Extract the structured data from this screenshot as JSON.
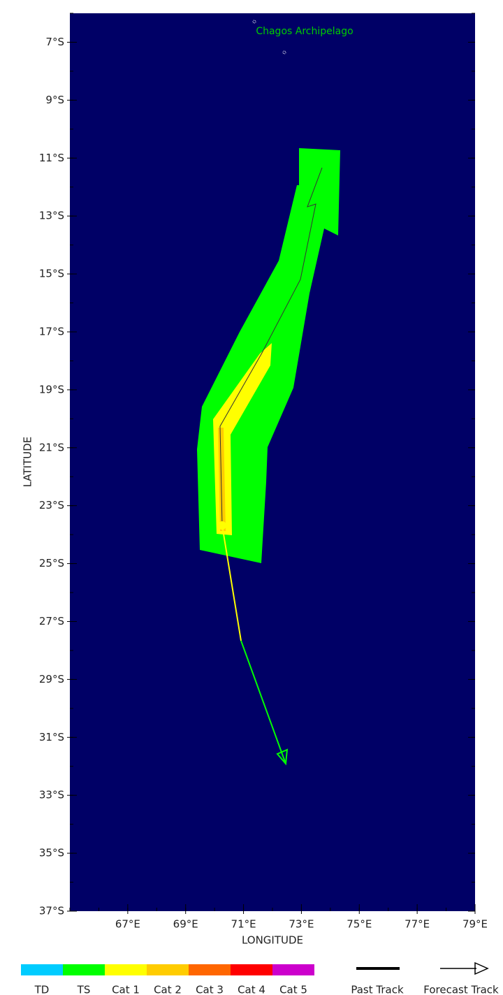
{
  "place_label": "Chagos Archipelago",
  "axes": {
    "xlabel": "LONGITUDE",
    "ylabel": "LATITUDE",
    "lon_range": [
      65,
      79
    ],
    "lat_range": [
      -6,
      -37
    ],
    "xticks": [
      {
        "value": 67,
        "label": "67°E"
      },
      {
        "value": 69,
        "label": "69°E"
      },
      {
        "value": 71,
        "label": "71°E"
      },
      {
        "value": 73,
        "label": "73°E"
      },
      {
        "value": 75,
        "label": "75°E"
      },
      {
        "value": 77,
        "label": "77°E"
      },
      {
        "value": 79,
        "label": "79°E"
      }
    ],
    "yticks": [
      {
        "value": -7,
        "label": "7°S"
      },
      {
        "value": -9,
        "label": "9°S"
      },
      {
        "value": -11,
        "label": "11°S"
      },
      {
        "value": -13,
        "label": "13°S"
      },
      {
        "value": -15,
        "label": "15°S"
      },
      {
        "value": -17,
        "label": "17°S"
      },
      {
        "value": -19,
        "label": "19°S"
      },
      {
        "value": -21,
        "label": "21°S"
      },
      {
        "value": -23,
        "label": "23°S"
      },
      {
        "value": -25,
        "label": "25°S"
      },
      {
        "value": -27,
        "label": "27°S"
      },
      {
        "value": -29,
        "label": "29°S"
      },
      {
        "value": -31,
        "label": "31°S"
      },
      {
        "value": -33,
        "label": "33°S"
      },
      {
        "value": -35,
        "label": "35°S"
      },
      {
        "value": -37,
        "label": "37°S"
      }
    ]
  },
  "legend": {
    "categories": [
      {
        "label": "TD",
        "color": "#00ccff"
      },
      {
        "label": "TS",
        "color": "#00ff00"
      },
      {
        "label": "Cat 1",
        "color": "#ffff00"
      },
      {
        "label": "Cat 2",
        "color": "#ffcc00"
      },
      {
        "label": "Cat 3",
        "color": "#ff6600"
      },
      {
        "label": "Cat 4",
        "color": "#ff0000"
      },
      {
        "label": "Cat 5",
        "color": "#cc00cc"
      }
    ],
    "past_track": "Past Track",
    "forecast_track": "Forecast Track"
  }
}
